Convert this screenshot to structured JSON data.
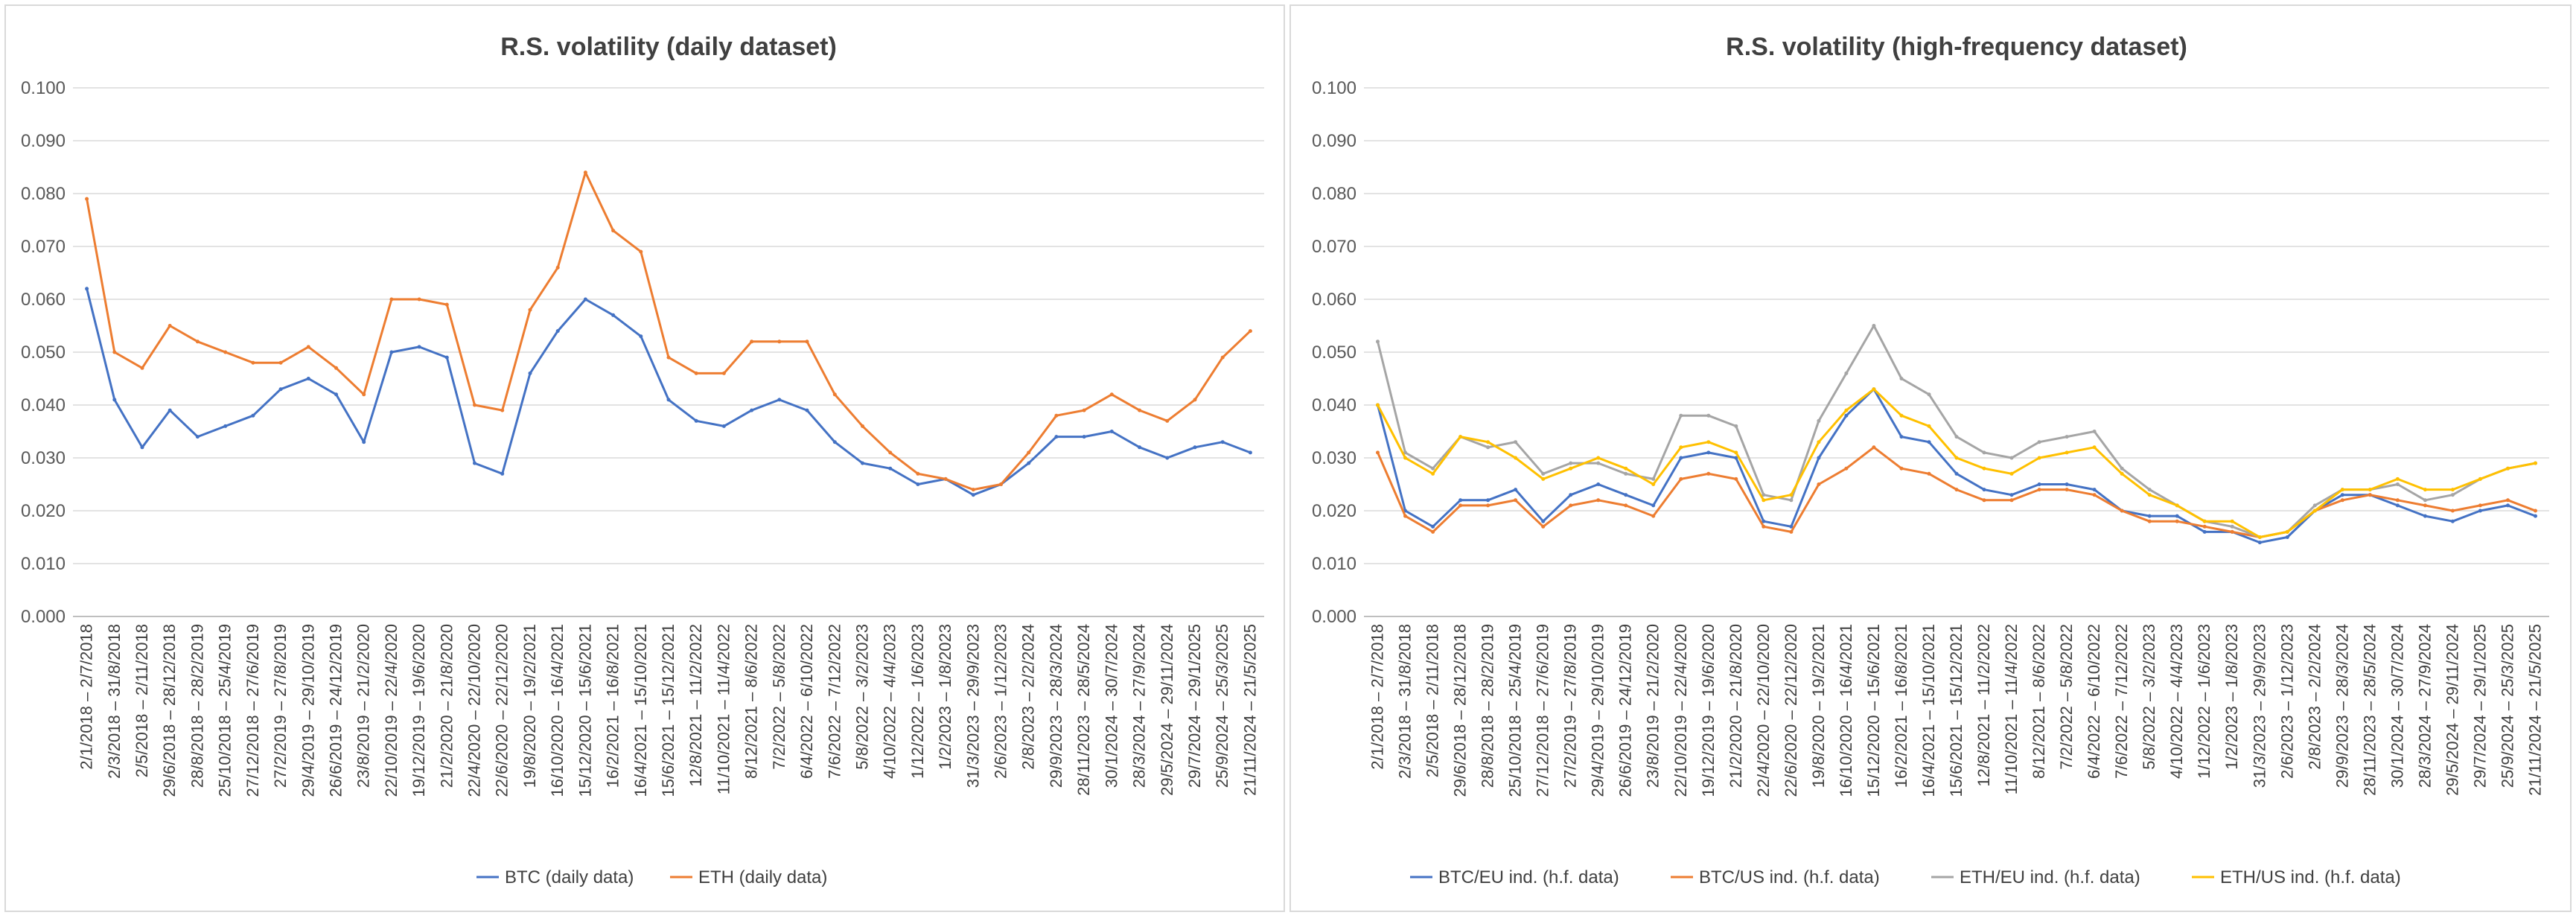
{
  "chart_data": [
    {
      "type": "line",
      "title": "R.S. volatility (daily dataset)",
      "xlabel": "",
      "ylabel": "",
      "ylim": [
        0,
        0.1
      ],
      "yticks": [
        "0.000",
        "0.010",
        "0.020",
        "0.030",
        "0.040",
        "0.050",
        "0.060",
        "0.070",
        "0.080",
        "0.090",
        "0.100"
      ],
      "grid": true,
      "legend": "bottom",
      "x": [
        "2/1/2018 – 2/7/2018",
        "2/3/2018 – 31/8/2018",
        "2/5/2018 – 2/11/2018",
        "29/6/2018 – 28/12/2018",
        "28/8/2018 – 28/2/2019",
        "25/10/2018 – 25/4/2019",
        "27/12/2018 – 27/6/2019",
        "27/2/2019 – 27/8/2019",
        "29/4/2019 – 29/10/2019",
        "26/6/2019 – 24/12/2019",
        "23/8/2019 – 21/2/2020",
        "22/10/2019 – 22/4/2020",
        "19/12/2019 – 19/6/2020",
        "21/2/2020 – 21/8/2020",
        "22/4/2020 – 22/10/2020",
        "22/6/2020 – 22/12/2020",
        "19/8/2020 – 19/2/2021",
        "16/10/2020 – 16/4/2021",
        "15/12/2020 – 15/6/2021",
        "16/2/2021 – 16/8/2021",
        "16/4/2021 – 15/10/2021",
        "15/6/2021 – 15/12/2021",
        "12/8/2021 – 11/2/2022",
        "11/10/2021 – 11/4/2022",
        "8/12/2021 – 8/6/2022",
        "7/2/2022 – 5/8/2022",
        "6/4/2022 – 6/10/2022",
        "7/6/2022 – 7/12/2022",
        "5/8/2022 – 3/2/2023",
        "4/10/2022 – 4/4/2023",
        "1/12/2022 – 1/6/2023",
        "1/2/2023 – 1/8/2023",
        "31/3/2023 – 29/9/2023",
        "2/6/2023 – 1/12/2023",
        "2/8/2023 – 2/2/2024",
        "29/9/2023 – 28/3/2024",
        "28/11/2023 – 28/5/2024",
        "30/1/2024 – 30/7/2024",
        "28/3/2024 – 27/9/2024",
        "29/5/2024 – 29/11/2024",
        "29/7/2024 – 29/1/2025",
        "25/9/2024 – 25/3/2025",
        "21/11/2024 – 21/5/2025"
      ],
      "series": [
        {
          "name": "BTC (daily data)",
          "color": "#4472c4",
          "values": [
            0.062,
            0.041,
            0.032,
            0.039,
            0.034,
            0.036,
            0.038,
            0.043,
            0.045,
            0.042,
            0.033,
            0.05,
            0.051,
            0.049,
            0.029,
            0.027,
            0.046,
            0.054,
            0.06,
            0.057,
            0.053,
            0.041,
            0.037,
            0.036,
            0.039,
            0.041,
            0.039,
            0.033,
            0.029,
            0.028,
            0.025,
            0.026,
            0.023,
            0.025,
            0.029,
            0.034,
            0.034,
            0.035,
            0.032,
            0.03,
            0.032,
            0.033,
            0.031
          ]
        },
        {
          "name": "ETH (daily data)",
          "color": "#ed7d31",
          "values": [
            0.079,
            0.05,
            0.047,
            0.055,
            0.052,
            0.05,
            0.048,
            0.048,
            0.051,
            0.047,
            0.042,
            0.06,
            0.06,
            0.059,
            0.04,
            0.039,
            0.058,
            0.066,
            0.084,
            0.073,
            0.069,
            0.049,
            0.046,
            0.046,
            0.052,
            0.052,
            0.052,
            0.042,
            0.036,
            0.031,
            0.027,
            0.026,
            0.024,
            0.025,
            0.031,
            0.038,
            0.039,
            0.042,
            0.039,
            0.037,
            0.041,
            0.049,
            0.054
          ]
        }
      ]
    },
    {
      "type": "line",
      "title": "R.S. volatility (high-frequency dataset)",
      "xlabel": "",
      "ylabel": "",
      "ylim": [
        0,
        0.1
      ],
      "yticks": [
        "0.000",
        "0.010",
        "0.020",
        "0.030",
        "0.040",
        "0.050",
        "0.060",
        "0.070",
        "0.080",
        "0.090",
        "0.100"
      ],
      "grid": true,
      "legend": "bottom",
      "x": [
        "2/1/2018 – 2/7/2018",
        "2/3/2018 – 31/8/2018",
        "2/5/2018 – 2/11/2018",
        "29/6/2018 – 28/12/2018",
        "28/8/2018 – 28/2/2019",
        "25/10/2018 – 25/4/2019",
        "27/12/2018 – 27/6/2019",
        "27/2/2019 – 27/8/2019",
        "29/4/2019 – 29/10/2019",
        "26/6/2019 – 24/12/2019",
        "23/8/2019 – 21/2/2020",
        "22/10/2019 – 22/4/2020",
        "19/12/2019 – 19/6/2020",
        "21/2/2020 – 21/8/2020",
        "22/4/2020 – 22/10/2020",
        "22/6/2020 – 22/12/2020",
        "19/8/2020 – 19/2/2021",
        "16/10/2020 – 16/4/2021",
        "15/12/2020 – 15/6/2021",
        "16/2/2021 – 16/8/2021",
        "16/4/2021 – 15/10/2021",
        "15/6/2021 – 15/12/2021",
        "12/8/2021 – 11/2/2022",
        "11/10/2021 – 11/4/2022",
        "8/12/2021 – 8/6/2022",
        "7/2/2022 – 5/8/2022",
        "6/4/2022 – 6/10/2022",
        "7/6/2022 – 7/12/2022",
        "5/8/2022 – 3/2/2023",
        "4/10/2022 – 4/4/2023",
        "1/12/2022 – 1/6/2023",
        "1/2/2023 – 1/8/2023",
        "31/3/2023 – 29/9/2023",
        "2/6/2023 – 1/12/2023",
        "2/8/2023 – 2/2/2024",
        "29/9/2023 – 28/3/2024",
        "28/11/2023 – 28/5/2024",
        "30/1/2024 – 30/7/2024",
        "28/3/2024 – 27/9/2024",
        "29/5/2024 – 29/11/2024",
        "29/7/2024 – 29/1/2025",
        "25/9/2024 – 25/3/2025",
        "21/11/2024 – 21/5/2025"
      ],
      "series": [
        {
          "name": "BTC/EU ind. (h.f. data)",
          "color": "#4472c4",
          "values": [
            0.04,
            0.02,
            0.017,
            0.022,
            0.022,
            0.024,
            0.018,
            0.023,
            0.025,
            0.023,
            0.021,
            0.03,
            0.031,
            0.03,
            0.018,
            0.017,
            0.03,
            0.038,
            0.043,
            0.034,
            0.033,
            0.027,
            0.024,
            0.023,
            0.025,
            0.025,
            0.024,
            0.02,
            0.019,
            0.019,
            0.016,
            0.016,
            0.014,
            0.015,
            0.02,
            0.023,
            0.023,
            0.021,
            0.019,
            0.018,
            0.02,
            0.021,
            0.019
          ]
        },
        {
          "name": "BTC/US ind. (h.f. data)",
          "color": "#ed7d31",
          "values": [
            0.031,
            0.019,
            0.016,
            0.021,
            0.021,
            0.022,
            0.017,
            0.021,
            0.022,
            0.021,
            0.019,
            0.026,
            0.027,
            0.026,
            0.017,
            0.016,
            0.025,
            0.028,
            0.032,
            0.028,
            0.027,
            0.024,
            0.022,
            0.022,
            0.024,
            0.024,
            0.023,
            0.02,
            0.018,
            0.018,
            0.017,
            0.016,
            0.015,
            0.016,
            0.02,
            0.022,
            0.023,
            0.022,
            0.021,
            0.02,
            0.021,
            0.022,
            0.02
          ]
        },
        {
          "name": "ETH/EU ind. (h.f. data)",
          "color": "#a5a5a5",
          "values": [
            0.052,
            0.031,
            0.028,
            0.034,
            0.032,
            0.033,
            0.027,
            0.029,
            0.029,
            0.027,
            0.026,
            0.038,
            0.038,
            0.036,
            0.023,
            0.022,
            0.037,
            0.046,
            0.055,
            0.045,
            0.042,
            0.034,
            0.031,
            0.03,
            0.033,
            0.034,
            0.035,
            0.028,
            0.024,
            0.021,
            0.018,
            0.017,
            0.015,
            0.016,
            0.021,
            0.024,
            0.024,
            0.025,
            0.022,
            0.023,
            0.026,
            0.028,
            0.029
          ]
        },
        {
          "name": "ETH/US ind. (h.f. data)",
          "color": "#ffc000",
          "values": [
            0.04,
            0.03,
            0.027,
            0.034,
            0.033,
            0.03,
            0.026,
            0.028,
            0.03,
            0.028,
            0.025,
            0.032,
            0.033,
            0.031,
            0.022,
            0.023,
            0.033,
            0.039,
            0.043,
            0.038,
            0.036,
            0.03,
            0.028,
            0.027,
            0.03,
            0.031,
            0.032,
            0.027,
            0.023,
            0.021,
            0.018,
            0.018,
            0.015,
            0.016,
            0.02,
            0.024,
            0.024,
            0.026,
            0.024,
            0.024,
            0.026,
            0.028,
            0.029
          ]
        }
      ]
    }
  ]
}
